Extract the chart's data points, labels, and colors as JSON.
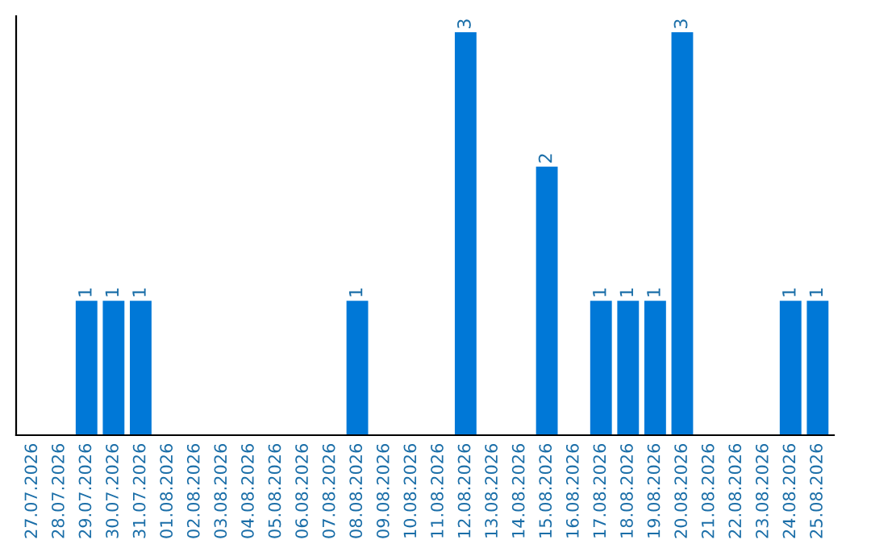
{
  "chart_data": {
    "type": "bar",
    "color": "#0078d7",
    "categories": [
      "27.07.2026",
      "28.07.2026",
      "29.07.2026",
      "30.07.2026",
      "31.07.2026",
      "01.08.2026",
      "02.08.2026",
      "03.08.2026",
      "04.08.2026",
      "05.08.2026",
      "06.08.2026",
      "07.08.2026",
      "08.08.2026",
      "09.08.2026",
      "10.08.2026",
      "11.08.2026",
      "12.08.2026",
      "13.08.2026",
      "14.08.2026",
      "15.08.2026",
      "16.08.2026",
      "17.08.2026",
      "18.08.2026",
      "19.08.2026",
      "20.08.2026",
      "21.08.2026",
      "22.08.2026",
      "23.08.2026",
      "24.08.2026",
      "25.08.2026"
    ],
    "values": [
      0,
      0,
      1,
      1,
      1,
      0,
      0,
      0,
      0,
      0,
      0,
      0,
      1,
      0,
      0,
      0,
      3,
      0,
      0,
      2,
      0,
      1,
      1,
      1,
      3,
      0,
      0,
      0,
      1,
      1
    ],
    "value_labels": [
      null,
      null,
      "1",
      "1",
      "1",
      null,
      null,
      null,
      null,
      null,
      null,
      null,
      "1",
      null,
      null,
      null,
      "3",
      null,
      null,
      "2",
      null,
      "1",
      "1",
      "1",
      "3",
      null,
      null,
      null,
      "1",
      "1"
    ],
    "ylim": [
      0,
      3.12
    ],
    "tick_labels": "x",
    "grid": false,
    "legend": false
  }
}
